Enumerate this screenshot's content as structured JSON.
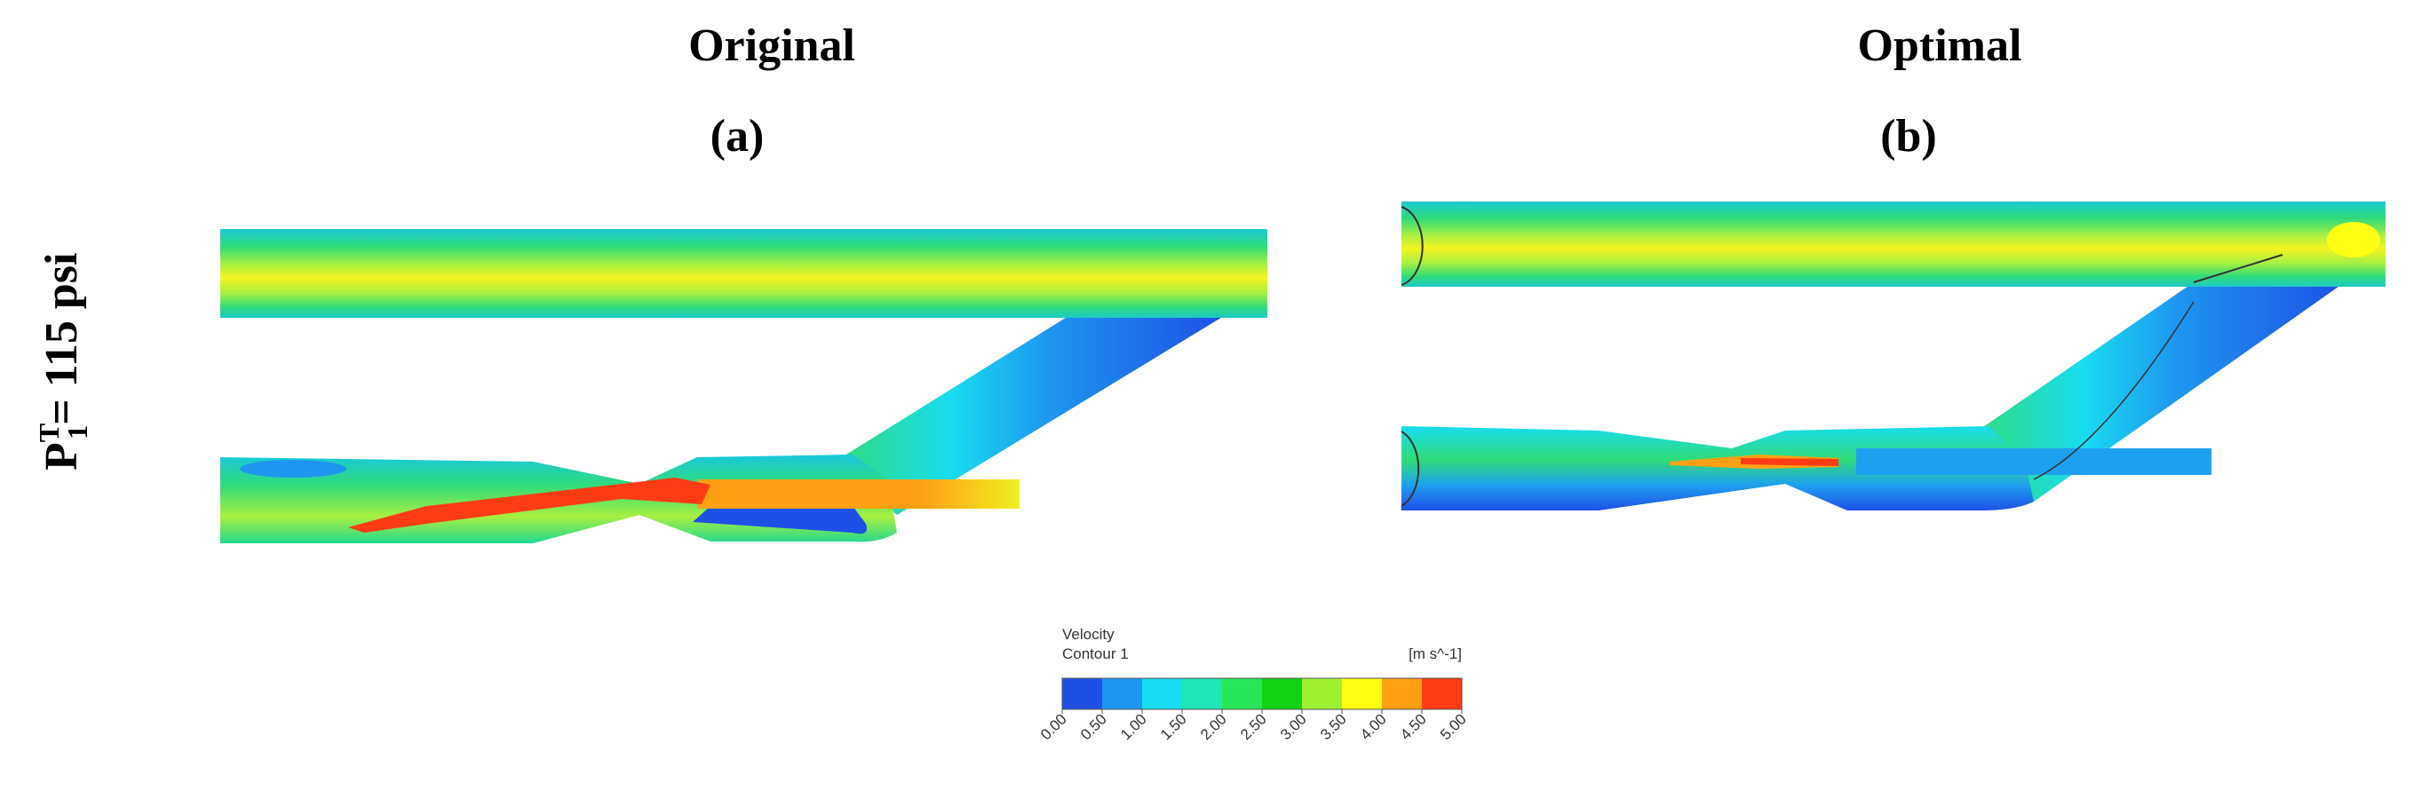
{
  "header": {
    "left": {
      "title": "Original",
      "label": "(a)"
    },
    "right": {
      "title": "Optimal",
      "label": "(b)"
    }
  },
  "row_label": {
    "base": "P",
    "superscript": "T",
    "subscript": "1",
    "text": "= 115 psi"
  },
  "colorbar": {
    "title": "Velocity",
    "subtitle": "Contour 1",
    "unit": "[m s^-1]",
    "ticks": [
      {
        "value": 0,
        "label": "0.00"
      },
      {
        "value": 0.5,
        "label": "0.50"
      },
      {
        "value": 1,
        "label": "1.00"
      },
      {
        "value": 1.5,
        "label": "1.50"
      },
      {
        "value": 2,
        "label": "2.00"
      },
      {
        "value": 2.5,
        "label": "2.50"
      },
      {
        "value": 3,
        "label": "3.00"
      },
      {
        "value": 3.5,
        "label": "3.50"
      },
      {
        "value": 4,
        "label": "4.00"
      },
      {
        "value": 4.5,
        "label": "4.50"
      },
      {
        "value": 5,
        "label": "5.00"
      }
    ],
    "colors": [
      "#1e50e6",
      "#1e96f0",
      "#18dcf0",
      "#1ee6b4",
      "#28e65a",
      "#14d214",
      "#a0f032",
      "#ffff14",
      "#ffa014",
      "#ff3c14"
    ]
  }
}
